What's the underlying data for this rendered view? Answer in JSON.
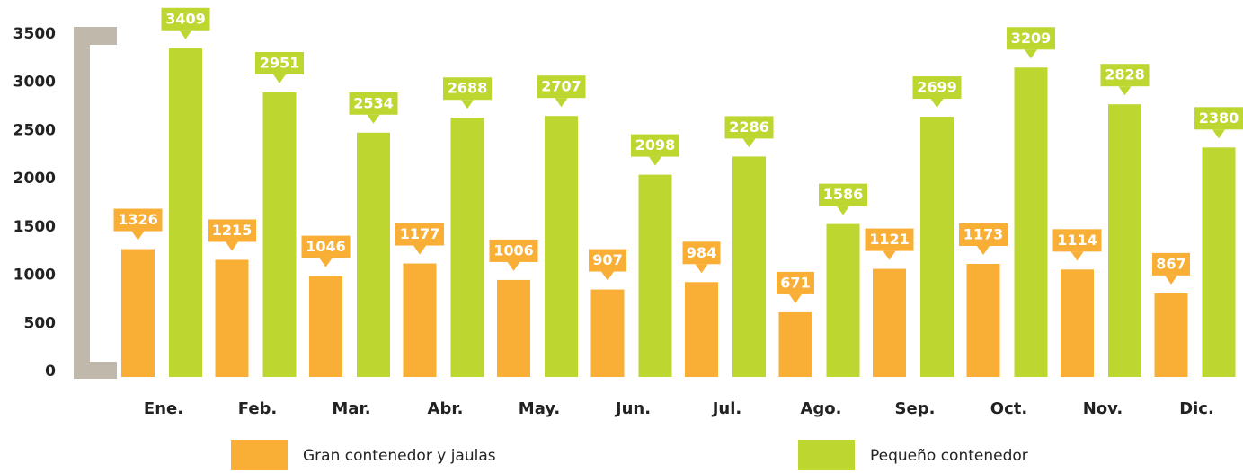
{
  "chart_data": {
    "type": "bar",
    "categories": [
      "Ene.",
      "Feb.",
      "Mar.",
      "Abr.",
      "May.",
      "Jun.",
      "Jul.",
      "Ago.",
      "Sep.",
      "Oct.",
      "Nov.",
      "Dic."
    ],
    "series": [
      {
        "name": "Gran contenedor y jaulas",
        "color": "#f9ae36",
        "values": [
          1326,
          1215,
          1046,
          1177,
          1006,
          907,
          984,
          671,
          1121,
          1173,
          1114,
          867
        ]
      },
      {
        "name": "Pequeño contenedor",
        "color": "#bed630",
        "values": [
          3409,
          2951,
          2534,
          2688,
          2707,
          2098,
          2286,
          1586,
          2699,
          3209,
          2828,
          2380
        ]
      }
    ],
    "ylim": [
      0,
      3500
    ],
    "yticks": [
      0,
      500,
      1000,
      1500,
      2000,
      2500,
      3000,
      3500
    ],
    "grid": false
  }
}
